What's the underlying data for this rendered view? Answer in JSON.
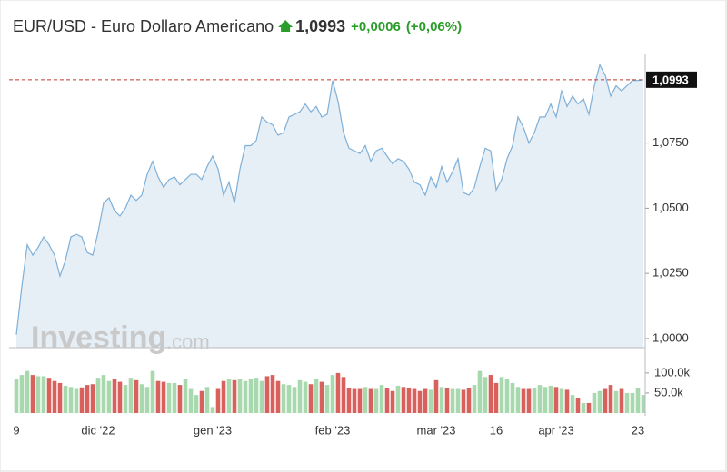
{
  "header": {
    "title": "EUR/USD - Euro Dollaro Americano",
    "price": "1,0993",
    "change": "+0,0006",
    "change_pct": "(+0,06%)"
  },
  "watermark": {
    "brand": "Investing",
    "suffix": ".com"
  },
  "chart_data": [
    {
      "type": "area",
      "color": "#7fb0d8",
      "fill": "#e6eef6",
      "categories": [
        "9",
        null,
        null,
        null,
        null,
        null,
        null,
        null,
        null,
        null,
        null,
        null,
        null,
        null,
        null,
        "dic '22",
        null,
        null,
        null,
        null,
        null,
        null,
        null,
        null,
        null,
        null,
        null,
        null,
        null,
        null,
        null,
        null,
        null,
        null,
        null,
        null,
        "gen '23",
        null,
        null,
        null,
        null,
        null,
        null,
        null,
        null,
        null,
        null,
        null,
        null,
        null,
        null,
        null,
        null,
        null,
        null,
        null,
        null,
        null,
        "feb '23",
        null,
        null,
        null,
        null,
        null,
        null,
        null,
        null,
        null,
        null,
        null,
        null,
        null,
        null,
        null,
        null,
        null,
        null,
        "mar '23",
        null,
        null,
        null,
        null,
        null,
        null,
        null,
        null,
        null,
        null,
        "16",
        null,
        null,
        null,
        null,
        null,
        null,
        null,
        null,
        null,
        null,
        "apr '23",
        null,
        null,
        null,
        null,
        null,
        null,
        null,
        null,
        null,
        null,
        null,
        null,
        null,
        null,
        "23",
        null
      ],
      "values": [
        1.0015,
        1.02,
        1.036,
        1.032,
        1.035,
        1.039,
        1.036,
        1.032,
        1.024,
        1.03,
        1.039,
        1.04,
        1.039,
        1.033,
        1.032,
        1.041,
        1.052,
        1.054,
        1.049,
        1.047,
        1.05,
        1.055,
        1.053,
        1.055,
        1.063,
        1.068,
        1.062,
        1.058,
        1.061,
        1.062,
        1.059,
        1.061,
        1.063,
        1.063,
        1.061,
        1.066,
        1.07,
        1.065,
        1.055,
        1.06,
        1.052,
        1.065,
        1.074,
        1.074,
        1.076,
        1.085,
        1.083,
        1.082,
        1.078,
        1.079,
        1.085,
        1.086,
        1.087,
        1.09,
        1.087,
        1.089,
        1.085,
        1.086,
        1.099,
        1.091,
        1.079,
        1.073,
        1.072,
        1.071,
        1.074,
        1.068,
        1.072,
        1.073,
        1.07,
        1.067,
        1.069,
        1.068,
        1.065,
        1.06,
        1.059,
        1.055,
        1.062,
        1.058,
        1.066,
        1.06,
        1.064,
        1.069,
        1.056,
        1.055,
        1.058,
        1.066,
        1.073,
        1.072,
        1.057,
        1.061,
        1.069,
        1.074,
        1.085,
        1.081,
        1.075,
        1.079,
        1.085,
        1.085,
        1.09,
        1.085,
        1.095,
        1.089,
        1.093,
        1.09,
        1.092,
        1.086,
        1.097,
        1.105,
        1.101,
        1.093,
        1.097,
        1.095,
        1.097,
        1.099,
        1.099,
        1.0993
      ],
      "ylim": [
        0.9965,
        1.109
      ],
      "yticks": [
        {
          "value": 1.0,
          "label": "1,0000"
        },
        {
          "value": 1.025,
          "label": "1,0250"
        },
        {
          "value": 1.05,
          "label": "1,0500"
        },
        {
          "value": 1.075,
          "label": "1,0750"
        }
      ],
      "last_price": {
        "value": 1.0993,
        "label": "1,0993",
        "color": "#c0392b"
      }
    },
    {
      "type": "bar",
      "up_color": "#a8d8ae",
      "down_color": "#d8605d",
      "values": [
        85000,
        95000,
        105000,
        95000,
        92000,
        92000,
        88000,
        80000,
        75000,
        68000,
        65000,
        60000,
        64000,
        70000,
        72000,
        88000,
        95000,
        80000,
        85000,
        78000,
        70000,
        88000,
        82000,
        72000,
        65000,
        105000,
        80000,
        78000,
        75000,
        75000,
        70000,
        85000,
        60000,
        45000,
        55000,
        65000,
        15000,
        60000,
        80000,
        85000,
        82000,
        85000,
        80000,
        85000,
        88000,
        80000,
        92000,
        95000,
        80000,
        72000,
        70000,
        65000,
        82000,
        78000,
        72000,
        85000,
        78000,
        70000,
        95000,
        100000,
        90000,
        62000,
        60000,
        60000,
        65000,
        60000,
        60000,
        70000,
        62000,
        55000,
        68000,
        65000,
        62000,
        60000,
        55000,
        60000,
        58000,
        82000,
        65000,
        62000,
        60000,
        60000,
        58000,
        62000,
        70000,
        105000,
        90000,
        95000,
        75000,
        90000,
        85000,
        75000,
        65000,
        60000,
        60000,
        62000,
        70000,
        65000,
        68000,
        65000,
        60000,
        58000,
        45000,
        38000,
        25000,
        25000,
        50000,
        55000,
        60000,
        70000,
        55000,
        60000,
        50000,
        50000,
        62000,
        45000
      ],
      "ylim": [
        0,
        136000
      ],
      "yticks": [
        {
          "value": 50000,
          "label": "50.0k"
        },
        {
          "value": 100000,
          "label": "100.0k"
        }
      ]
    }
  ]
}
